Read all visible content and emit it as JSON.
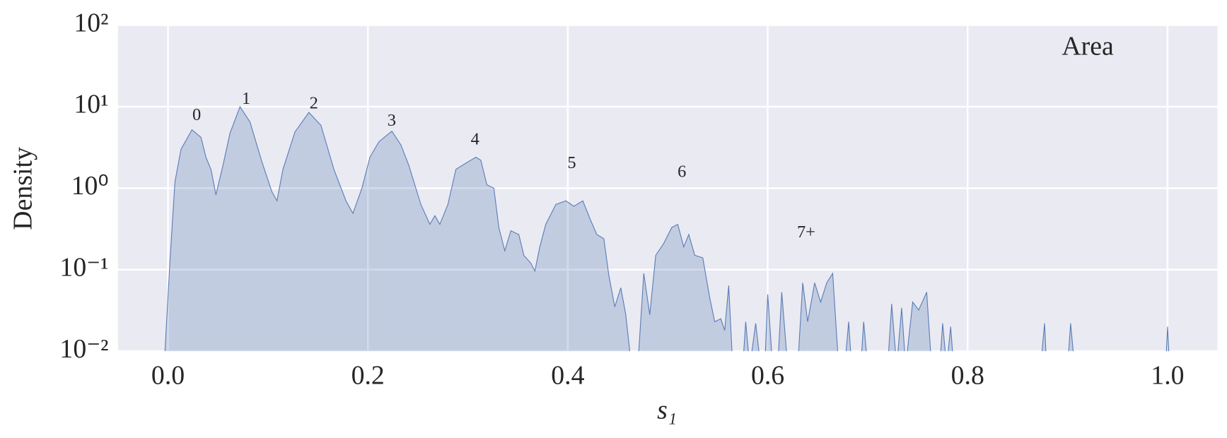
{
  "chart_data": {
    "type": "area",
    "xlabel": "s₁",
    "ylabel": "Density",
    "xlim": [
      -0.05,
      1.05
    ],
    "ylim": [
      0.01,
      100
    ],
    "yscale": "log",
    "grid": true,
    "legend": "upper right",
    "xticks": [
      {
        "value": 0,
        "label": "0.0"
      },
      0.2,
      0.4,
      0.6,
      0.8,
      {
        "value": 1,
        "label": "1.0"
      }
    ],
    "yticks": [
      {
        "value": 0.01,
        "label": "10⁻²"
      },
      {
        "value": 0.1,
        "label": "10⁻¹"
      },
      {
        "value": 1,
        "label": "10⁰"
      },
      {
        "value": 10,
        "label": "10¹"
      },
      {
        "value": 100,
        "label": "10²"
      }
    ],
    "annotations": [
      "0",
      "1",
      "2",
      "3",
      "4",
      "5",
      "6",
      "7+"
    ],
    "x": [
      -0.003,
      0.002,
      0.007,
      0.013,
      0.024,
      0.033,
      0.038,
      0.043,
      0.048,
      0.055,
      0.062,
      0.072,
      0.082,
      0.094,
      0.104,
      0.109,
      0.115,
      0.127,
      0.141,
      0.153,
      0.166,
      0.178,
      0.185,
      0.194,
      0.202,
      0.211,
      0.224,
      0.233,
      0.241,
      0.253,
      0.262,
      0.267,
      0.272,
      0.28,
      0.288,
      0.3,
      0.308,
      0.313,
      0.319,
      0.326,
      0.331,
      0.337,
      0.343,
      0.351,
      0.356,
      0.363,
      0.367,
      0.372,
      0.378,
      0.388,
      0.398,
      0.406,
      0.415,
      0.423,
      0.429,
      0.436,
      0.441,
      0.447,
      0.453,
      0.458,
      0.462,
      0.465,
      0.469,
      0.471,
      0.476,
      0.482,
      0.488,
      0.496,
      0.504,
      0.51,
      0.516,
      0.521,
      0.527,
      0.535,
      0.542,
      0.547,
      0.553,
      0.557,
      0.561,
      0.565,
      0.575,
      0.578,
      0.582,
      0.588,
      0.593,
      0.597,
      0.6,
      0.605,
      0.61,
      0.614,
      0.62,
      0.63,
      0.635,
      0.64,
      0.647,
      0.653,
      0.659,
      0.665,
      0.671,
      0.677,
      0.681,
      0.684,
      0.693,
      0.696,
      0.7,
      0.72,
      0.724,
      0.729,
      0.734,
      0.738,
      0.745,
      0.751,
      0.759,
      0.764,
      0.772,
      0.775,
      0.779,
      0.783,
      0.786,
      0.873,
      0.877,
      0.879,
      0.9,
      0.903,
      0.907,
      0.998,
      1.0,
      1.002
    ],
    "series": [
      {
        "name": "Area",
        "color": "#4c72b0",
        "values": [
          0.01,
          0.13,
          1.2,
          3,
          5.2,
          4.2,
          2.4,
          1.7,
          0.83,
          1.9,
          4.7,
          10,
          6.5,
          2.1,
          0.9,
          0.7,
          1.7,
          4.9,
          8.5,
          5.9,
          1.7,
          0.7,
          0.49,
          1.0,
          2.4,
          3.7,
          5,
          3.4,
          1.9,
          0.63,
          0.36,
          0.46,
          0.36,
          0.63,
          1.7,
          2.1,
          2.4,
          2.2,
          1.1,
          1.0,
          0.33,
          0.17,
          0.3,
          0.27,
          0.15,
          0.12,
          0.096,
          0.19,
          0.36,
          0.63,
          0.7,
          0.6,
          0.7,
          0.4,
          0.27,
          0.24,
          0.086,
          0.035,
          0.06,
          0.028,
          0.01,
          0.005,
          0.005,
          0.01,
          0.09,
          0.028,
          0.15,
          0.21,
          0.33,
          0.36,
          0.19,
          0.27,
          0.15,
          0.14,
          0.045,
          0.023,
          0.025,
          0.018,
          0.064,
          0.005,
          0.005,
          0.023,
          0.005,
          0.022,
          0.005,
          0.005,
          0.05,
          0.005,
          0.005,
          0.053,
          0.005,
          0.005,
          0.069,
          0.023,
          0.069,
          0.04,
          0.069,
          0.09,
          0.005,
          0.005,
          0.023,
          0.005,
          0.005,
          0.023,
          0.005,
          0.005,
          0.038,
          0.005,
          0.034,
          0.005,
          0.04,
          0.032,
          0.053,
          0.005,
          0.005,
          0.022,
          0.005,
          0.02,
          0.005,
          0.005,
          0.022,
          0.005,
          0.005,
          0.022,
          0.005,
          0.005,
          0.02,
          0.005
        ]
      }
    ]
  }
}
